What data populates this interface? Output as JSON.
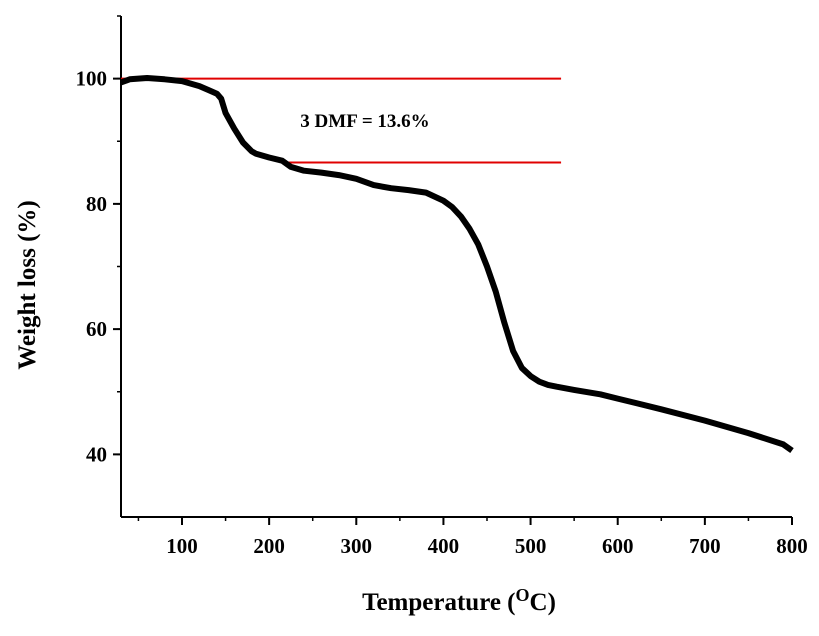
{
  "chart_data": {
    "type": "line",
    "title": "",
    "xlabel": "Temperature (",
    "xlabel_superscript": "O",
    "xlabel_suffix": "C)",
    "ylabel": "Weight loss (%)",
    "xlim": [
      30,
      800
    ],
    "ylim": [
      30,
      110
    ],
    "xticks": [
      100,
      200,
      300,
      400,
      500,
      600,
      700,
      800
    ],
    "yticks": [
      40,
      60,
      80,
      100
    ],
    "x_minor_step": 50,
    "y_minor_step": 10,
    "grid": false,
    "legend": "none",
    "series": [
      {
        "color": "#000000",
        "x": [
          30,
          40,
          60,
          80,
          100,
          110,
          120,
          130,
          140,
          145,
          150,
          160,
          170,
          180,
          185,
          200,
          215,
          225,
          240,
          260,
          280,
          300,
          320,
          340,
          360,
          380,
          400,
          410,
          420,
          430,
          440,
          450,
          460,
          470,
          480,
          490,
          500,
          510,
          520,
          530,
          550,
          580,
          600,
          650,
          700,
          750,
          790,
          800
        ],
        "y": [
          99.4,
          99.9,
          100.1,
          99.9,
          99.6,
          99.2,
          98.8,
          98.2,
          97.6,
          96.8,
          94.5,
          92.0,
          89.8,
          88.4,
          88.0,
          87.4,
          86.9,
          85.9,
          85.3,
          85.0,
          84.6,
          84.0,
          83.0,
          82.5,
          82.2,
          81.8,
          80.5,
          79.5,
          78.0,
          76.0,
          73.5,
          70.0,
          66.0,
          61.0,
          56.5,
          53.8,
          52.5,
          51.6,
          51.1,
          50.8,
          50.3,
          49.6,
          48.9,
          47.2,
          45.4,
          43.4,
          41.6,
          40.6
        ]
      }
    ],
    "annotation": {
      "text": "3 DMF = 13.6%",
      "color": "#e00000",
      "lines": [
        {
          "y": 100.0,
          "x_start": 30,
          "x_end": 535
        },
        {
          "y": 86.6,
          "x_start": 220,
          "x_end": 535
        }
      ]
    }
  }
}
